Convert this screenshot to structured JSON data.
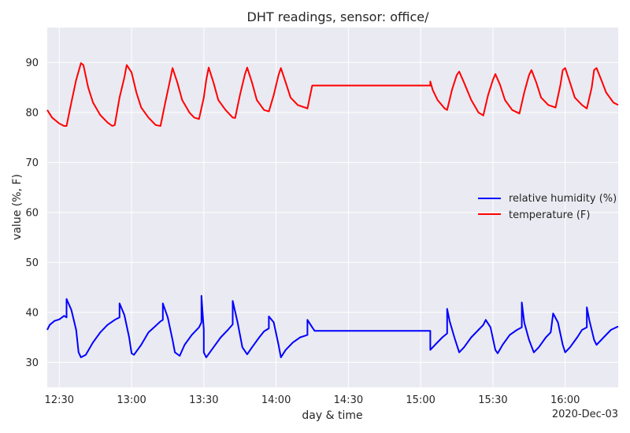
{
  "chart_data": {
    "type": "line",
    "title": "DHT readings, sensor: office/",
    "xlabel": "day & time",
    "ylabel": "value (%, F)",
    "date_label": "2020-Dec-03",
    "x_ticks": [
      "12:30",
      "13:00",
      "13:30",
      "14:00",
      "14:30",
      "15:00",
      "15:30",
      "16:00"
    ],
    "x_tick_values": [
      "12:30",
      "13:00",
      "13:30",
      "14:00",
      "14:30",
      "15:00",
      "15:30",
      "16:00"
    ],
    "xlim": [
      "12:25",
      "16:22"
    ],
    "y_ticks": [
      30,
      40,
      50,
      60,
      70,
      80,
      90
    ],
    "ylim": [
      25,
      97
    ],
    "grid": true,
    "legend_position": "center-right",
    "series": [
      {
        "name": "relative humidity (%)",
        "color": "#0000ff",
        "points": [
          [
            "12:25",
            36.5
          ],
          [
            "12:26",
            37.5
          ],
          [
            "12:28",
            38.3
          ],
          [
            "12:30",
            38.6
          ],
          [
            "12:32",
            39.3
          ],
          [
            "12:33",
            39.0
          ],
          [
            "12:33",
            42.7
          ],
          [
            "12:35",
            40.5
          ],
          [
            "12:37",
            36.5
          ],
          [
            "12:38",
            32.0
          ],
          [
            "12:39",
            31.0
          ],
          [
            "12:41",
            31.5
          ],
          [
            "12:44",
            34.0
          ],
          [
            "12:47",
            36.0
          ],
          [
            "12:50",
            37.5
          ],
          [
            "12:53",
            38.5
          ],
          [
            "12:55",
            39.0
          ],
          [
            "12:55",
            41.8
          ],
          [
            "12:57",
            39.5
          ],
          [
            "12:59",
            35.0
          ],
          [
            "13:00",
            31.8
          ],
          [
            "13:01",
            31.5
          ],
          [
            "13:04",
            33.5
          ],
          [
            "13:07",
            36.0
          ],
          [
            "13:10",
            37.3
          ],
          [
            "13:12",
            38.2
          ],
          [
            "13:13",
            38.5
          ],
          [
            "13:13",
            41.8
          ],
          [
            "13:15",
            39.0
          ],
          [
            "13:17",
            34.5
          ],
          [
            "13:18",
            32.0
          ],
          [
            "13:20",
            31.3
          ],
          [
            "13:22",
            33.5
          ],
          [
            "13:25",
            35.5
          ],
          [
            "13:28",
            37.0
          ],
          [
            "13:29",
            38.0
          ],
          [
            "13:29",
            43.3
          ],
          [
            "13:30",
            36.5
          ],
          [
            "13:30",
            32.0
          ],
          [
            "13:31",
            31.0
          ],
          [
            "13:34",
            33.0
          ],
          [
            "13:37",
            35.0
          ],
          [
            "13:40",
            36.5
          ],
          [
            "13:42",
            37.6
          ],
          [
            "13:42",
            42.3
          ],
          [
            "13:44",
            38.0
          ],
          [
            "13:46",
            33.0
          ],
          [
            "13:48",
            31.6
          ],
          [
            "13:50",
            33.0
          ],
          [
            "13:53",
            35.0
          ],
          [
            "13:55",
            36.2
          ],
          [
            "13:57",
            36.8
          ],
          [
            "13:57",
            39.2
          ],
          [
            "13:59",
            38.0
          ],
          [
            "14:01",
            33.5
          ],
          [
            "14:02",
            31.0
          ],
          [
            "14:04",
            32.5
          ],
          [
            "14:07",
            34.0
          ],
          [
            "14:10",
            35.0
          ],
          [
            "14:13",
            35.5
          ],
          [
            "14:13",
            38.5
          ],
          [
            "14:15",
            37.0
          ],
          [
            "14:16",
            36.3
          ],
          [
            "14:30",
            36.3
          ],
          [
            "14:45",
            36.3
          ],
          [
            "15:00",
            36.3
          ],
          [
            "15:04",
            36.3
          ],
          [
            "15:04",
            32.5
          ],
          [
            "15:06",
            33.5
          ],
          [
            "15:09",
            35.0
          ],
          [
            "15:11",
            35.8
          ],
          [
            "15:11",
            40.7
          ],
          [
            "15:12",
            38.3
          ],
          [
            "15:14",
            35.0
          ],
          [
            "15:16",
            32.0
          ],
          [
            "15:18",
            33.0
          ],
          [
            "15:21",
            35.0
          ],
          [
            "15:24",
            36.5
          ],
          [
            "15:26",
            37.5
          ],
          [
            "15:27",
            38.5
          ],
          [
            "15:29",
            37.0
          ],
          [
            "15:31",
            32.5
          ],
          [
            "15:32",
            31.8
          ],
          [
            "15:34",
            33.5
          ],
          [
            "15:37",
            35.5
          ],
          [
            "15:40",
            36.5
          ],
          [
            "15:42",
            37.0
          ],
          [
            "15:42",
            42.0
          ],
          [
            "15:43",
            38.0
          ],
          [
            "15:45",
            34.5
          ],
          [
            "15:47",
            32.0
          ],
          [
            "15:49",
            33.0
          ],
          [
            "15:52",
            35.0
          ],
          [
            "15:54",
            36.0
          ],
          [
            "15:55",
            39.8
          ],
          [
            "15:57",
            38.0
          ],
          [
            "15:59",
            33.5
          ],
          [
            "16:00",
            32.0
          ],
          [
            "16:02",
            33.0
          ],
          [
            "16:05",
            35.0
          ],
          [
            "16:07",
            36.5
          ],
          [
            "16:09",
            37.0
          ],
          [
            "16:09",
            41.0
          ],
          [
            "16:10",
            38.5
          ],
          [
            "16:12",
            34.5
          ],
          [
            "16:13",
            33.5
          ],
          [
            "16:16",
            35.0
          ],
          [
            "16:19",
            36.5
          ],
          [
            "16:22",
            37.2
          ]
        ]
      },
      {
        "name": "temperature (F)",
        "color": "#ff0000",
        "points": [
          [
            "12:25",
            80.5
          ],
          [
            "12:27",
            79.0
          ],
          [
            "12:30",
            77.8
          ],
          [
            "12:32",
            77.3
          ],
          [
            "12:33",
            77.3
          ],
          [
            "12:35",
            82.0
          ],
          [
            "12:37",
            86.5
          ],
          [
            "12:39",
            89.9
          ],
          [
            "12:40",
            89.5
          ],
          [
            "12:42",
            85.0
          ],
          [
            "12:44",
            82.0
          ],
          [
            "12:47",
            79.5
          ],
          [
            "12:50",
            78.0
          ],
          [
            "12:52",
            77.3
          ],
          [
            "12:53",
            77.5
          ],
          [
            "12:55",
            83.0
          ],
          [
            "12:57",
            87.0
          ],
          [
            "12:58",
            89.5
          ],
          [
            "13:00",
            88.0
          ],
          [
            "13:02",
            84.0
          ],
          [
            "13:04",
            81.0
          ],
          [
            "13:07",
            79.0
          ],
          [
            "13:10",
            77.5
          ],
          [
            "13:12",
            77.3
          ],
          [
            "13:14",
            82.0
          ],
          [
            "13:16",
            86.5
          ],
          [
            "13:17",
            88.9
          ],
          [
            "13:19",
            86.0
          ],
          [
            "13:21",
            82.5
          ],
          [
            "13:24",
            80.0
          ],
          [
            "13:26",
            79.0
          ],
          [
            "13:28",
            78.7
          ],
          [
            "13:30",
            83.0
          ],
          [
            "13:31",
            86.5
          ],
          [
            "13:32",
            89.0
          ],
          [
            "13:34",
            86.0
          ],
          [
            "13:36",
            82.5
          ],
          [
            "13:39",
            80.5
          ],
          [
            "13:42",
            79.0
          ],
          [
            "13:43",
            78.9
          ],
          [
            "13:45",
            83.5
          ],
          [
            "13:47",
            87.5
          ],
          [
            "13:48",
            89.0
          ],
          [
            "13:50",
            86.0
          ],
          [
            "13:52",
            82.5
          ],
          [
            "13:55",
            80.5
          ],
          [
            "13:57",
            80.2
          ],
          [
            "13:59",
            83.5
          ],
          [
            "14:01",
            87.5
          ],
          [
            "14:02",
            88.9
          ],
          [
            "14:04",
            86.0
          ],
          [
            "14:06",
            83.0
          ],
          [
            "14:09",
            81.5
          ],
          [
            "14:12",
            81.0
          ],
          [
            "14:13",
            80.8
          ],
          [
            "14:15",
            85.4
          ],
          [
            "14:30",
            85.4
          ],
          [
            "14:45",
            85.4
          ],
          [
            "15:00",
            85.4
          ],
          [
            "15:04",
            85.4
          ],
          [
            "15:04",
            86.2
          ],
          [
            "15:05",
            84.5
          ],
          [
            "15:07",
            82.5
          ],
          [
            "15:10",
            80.8
          ],
          [
            "15:11",
            80.5
          ],
          [
            "15:13",
            84.5
          ],
          [
            "15:15",
            87.5
          ],
          [
            "15:16",
            88.2
          ],
          [
            "15:18",
            86.0
          ],
          [
            "15:21",
            82.5
          ],
          [
            "15:24",
            80.0
          ],
          [
            "15:26",
            79.4
          ],
          [
            "15:28",
            83.5
          ],
          [
            "15:30",
            86.5
          ],
          [
            "15:31",
            87.7
          ],
          [
            "15:33",
            85.5
          ],
          [
            "15:35",
            82.5
          ],
          [
            "15:38",
            80.5
          ],
          [
            "15:41",
            79.8
          ],
          [
            "15:43",
            84.0
          ],
          [
            "15:45",
            87.5
          ],
          [
            "15:46",
            88.5
          ],
          [
            "15:48",
            86.0
          ],
          [
            "15:50",
            83.0
          ],
          [
            "15:53",
            81.5
          ],
          [
            "15:56",
            81.0
          ],
          [
            "15:58",
            85.5
          ],
          [
            "15:59",
            88.5
          ],
          [
            "16:00",
            88.9
          ],
          [
            "16:02",
            86.0
          ],
          [
            "16:04",
            83.0
          ],
          [
            "16:07",
            81.5
          ],
          [
            "16:09",
            80.8
          ],
          [
            "16:11",
            85.0
          ],
          [
            "16:12",
            88.5
          ],
          [
            "16:13",
            88.9
          ],
          [
            "16:15",
            86.5
          ],
          [
            "16:17",
            84.0
          ],
          [
            "16:20",
            82.0
          ],
          [
            "16:22",
            81.5
          ]
        ]
      }
    ]
  }
}
